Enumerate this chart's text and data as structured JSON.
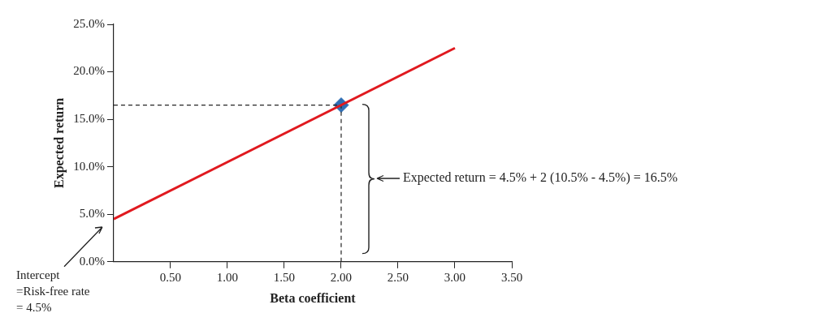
{
  "chart_data": {
    "type": "line",
    "xlabel": "Beta coefficient",
    "ylabel": "Expected return",
    "xlim": [
      0,
      3.5
    ],
    "ylim": [
      0,
      25
    ],
    "xticks": [
      {
        "value": 0.5,
        "label": "0.50"
      },
      {
        "value": 1,
        "label": "1.00"
      },
      {
        "value": 1.5,
        "label": "1.50"
      },
      {
        "value": 2,
        "label": "2.00"
      },
      {
        "value": 2.5,
        "label": "2.50"
      },
      {
        "value": 3,
        "label": "3.00"
      },
      {
        "value": 3.5,
        "label": "3.50"
      }
    ],
    "yticks": [
      {
        "value": 0,
        "label": "0.0%"
      },
      {
        "value": 5,
        "label": "5.0%"
      },
      {
        "value": 10,
        "label": "10.0%"
      },
      {
        "value": 15,
        "label": "15.0%"
      },
      {
        "value": 20,
        "label": "20.0%"
      },
      {
        "value": 25,
        "label": "25.0%"
      }
    ],
    "grid": false,
    "legend": false,
    "series": [
      {
        "type": "line",
        "color": "#e0191f",
        "x": [
          0,
          3
        ],
        "values": [
          4.5,
          22.5
        ],
        "marker": "none",
        "line_style": "solid"
      },
      {
        "type": "line",
        "color": "#222222",
        "x": [
          0,
          2
        ],
        "values": [
          16.5,
          16.5
        ],
        "marker": "none",
        "line_style": "dashed"
      },
      {
        "type": "line",
        "color": "#222222",
        "x": [
          2,
          2
        ],
        "values": [
          0,
          16.5
        ],
        "marker": "none",
        "line_style": "dashed"
      },
      {
        "type": "scatter",
        "color": "#2f6eb5",
        "x": [
          2
        ],
        "values": [
          16.5
        ],
        "marker": "diamond"
      }
    ],
    "annotations": [
      "Expected return = 4.5% + 2 (10.5% - 4.5%) = 16.5%",
      "Intercept\n=Risk-free rate\n= 4.5%"
    ]
  }
}
